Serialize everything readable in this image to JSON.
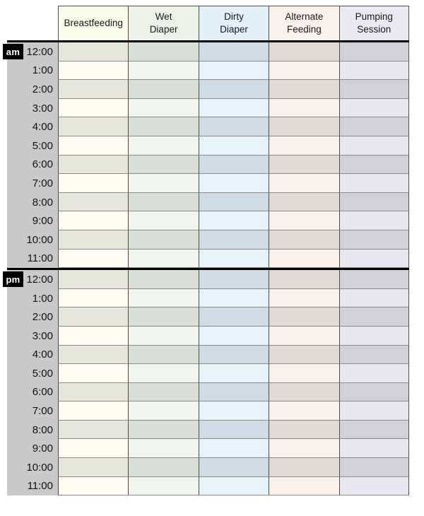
{
  "table": {
    "columns": [
      {
        "label": "Breastfeeding",
        "header_bg": "#fbfbe9",
        "light_bg": "#fffdf1",
        "dark_bg": "#e7e6db"
      },
      {
        "label": "Wet\nDiaper",
        "header_bg": "#edf2e9",
        "light_bg": "#eff4ec",
        "dark_bg": "#d8dfd6"
      },
      {
        "label": "Dirty\nDiaper",
        "header_bg": "#e2f0fa",
        "light_bg": "#e6f3fb",
        "dark_bg": "#cfdce6"
      },
      {
        "label": "Alternate\nFeeding",
        "header_bg": "#faf0ec",
        "light_bg": "#faf0ea",
        "dark_bg": "#e2dad3"
      },
      {
        "label": "Pumping\nSession",
        "header_bg": "#e9e9f2",
        "light_bg": "#e7e7f1",
        "dark_bg": "#d1d1db"
      }
    ],
    "sections": [
      {
        "badge": "am",
        "times": [
          "12:00",
          "1:00",
          "2:00",
          "3:00",
          "4:00",
          "5:00",
          "6:00",
          "7:00",
          "8:00",
          "9:00",
          "10:00",
          "11:00"
        ]
      },
      {
        "badge": "pm",
        "times": [
          "12:00",
          "1:00",
          "2:00",
          "3:00",
          "4:00",
          "5:00",
          "6:00",
          "7:00",
          "8:00",
          "9:00",
          "10:00",
          "11:00"
        ]
      }
    ],
    "time_column_bg": "#c9c9c9",
    "badge_bg": "#000000",
    "badge_text_color": "#ffffff"
  }
}
